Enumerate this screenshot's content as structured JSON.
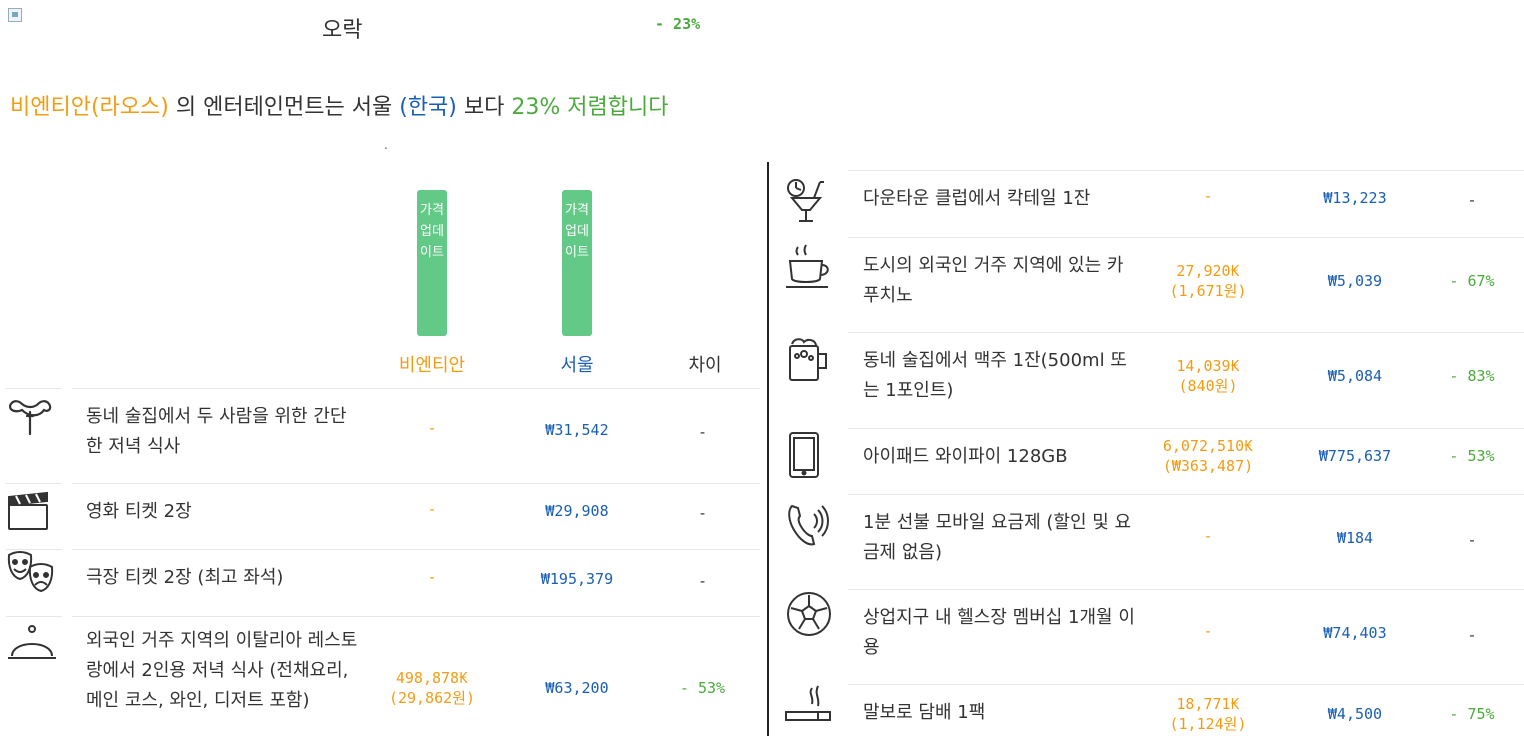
{
  "header": {
    "category_title": "오락",
    "category_diff": "- 23%"
  },
  "summary": {
    "city1": "비엔티안(라오스)",
    "part1": " 의 엔터테인먼트는 서울 ",
    "city2": "(한국)",
    "part2": " 보다 ",
    "pct_text": "23% 저렴합니다",
    "dot": "."
  },
  "buttons": {
    "update_label": "가격업데이트"
  },
  "columns": {
    "city1": "비엔티안",
    "city2": "서울",
    "diff": "차이"
  },
  "colors": {
    "orange": "#f39c12",
    "blue": "#1a5fb4",
    "green": "#4caa3c"
  },
  "left_items": [
    {
      "icon": "sausage-fork-icon",
      "label": "동네 술집에서 두 사람을 위한 간단한 저녁 식사",
      "city1_value": "-",
      "city1_sub": "",
      "city2_value": "₩31,542",
      "diff": "-"
    },
    {
      "icon": "clapperboard-icon",
      "label": "영화 티켓 2장",
      "city1_value": "-",
      "city1_sub": "",
      "city2_value": "₩29,908",
      "diff": "-"
    },
    {
      "icon": "theater-masks-icon",
      "label": "극장 티켓 2장 (최고 좌석)",
      "city1_value": "-",
      "city1_sub": "",
      "city2_value": "₩195,379",
      "diff": "-"
    },
    {
      "icon": "cloche-icon",
      "label": "외국인 거주 지역의 이탈리아 레스토랑에서 2인용 저녁 식사 (전채요리, 메인 코스, 와인, 디저트 포함)",
      "city1_value": "498,878₭",
      "city1_sub": "(29,862원)",
      "city2_value": "₩63,200",
      "diff": "- 53%"
    }
  ],
  "right_items": [
    {
      "icon": "cocktail-icon",
      "label": "다운타운 클럽에서 칵테일 1잔",
      "city1_value": "-",
      "city1_sub": "",
      "city2_value": "₩13,223",
      "diff": "-"
    },
    {
      "icon": "coffee-cup-icon",
      "label": "도시의 외국인 거주 지역에 있는 카푸치노",
      "city1_value": "27,920₭",
      "city1_sub": "(1,671원)",
      "city2_value": "₩5,039",
      "diff": "- 67%"
    },
    {
      "icon": "beer-mug-icon",
      "label": "동네 술집에서 맥주 1잔(500ml 또는 1포인트)",
      "city1_value": "14,039₭",
      "city1_sub": "(840원)",
      "city2_value": "₩5,084",
      "diff": "- 83%"
    },
    {
      "icon": "tablet-icon",
      "label": "아이패드 와이파이 128GB",
      "city1_value": "6,072,510₭",
      "city1_sub": "(₩363,487)",
      "city2_value": "₩775,637",
      "diff": "- 53%"
    },
    {
      "icon": "phone-icon",
      "label": "1분 선불 모바일 요금제 (할인 및 요금제 없음)",
      "city1_value": "-",
      "city1_sub": "",
      "city2_value": "₩184",
      "diff": "-"
    },
    {
      "icon": "soccer-ball-icon",
      "label": "상업지구 내 헬스장 멤버십 1개월 이용",
      "city1_value": "-",
      "city1_sub": "",
      "city2_value": "₩74,403",
      "diff": "-"
    },
    {
      "icon": "cigarette-icon",
      "label": "말보로 담배 1팩",
      "city1_value": "18,771₭",
      "city1_sub": "(1,124원)",
      "city2_value": "₩4,500",
      "diff": "- 75%"
    }
  ]
}
